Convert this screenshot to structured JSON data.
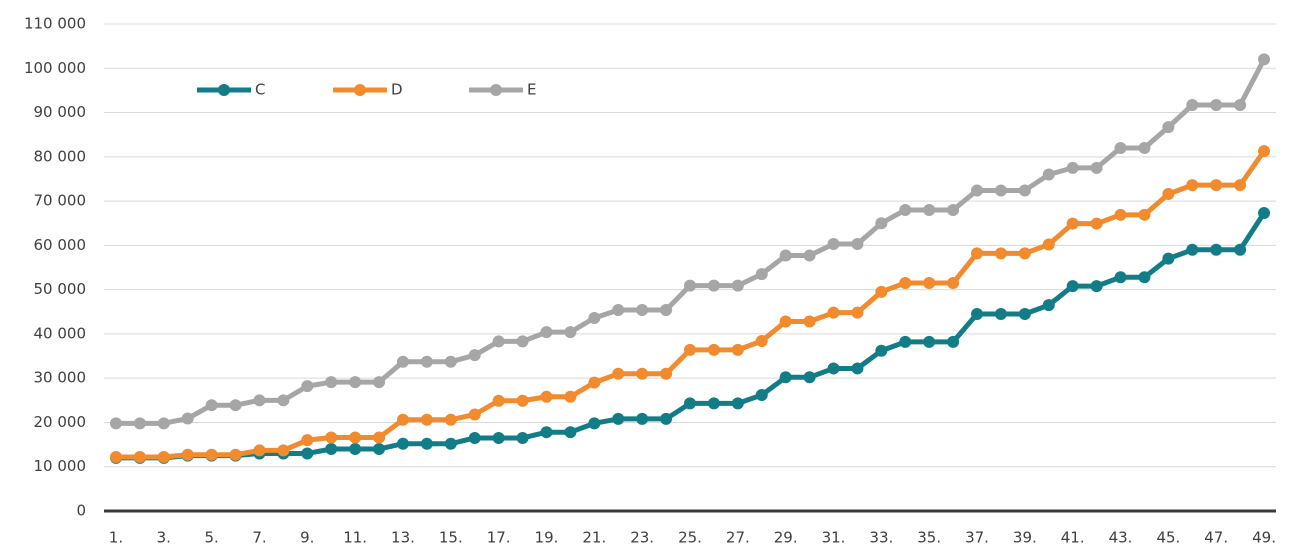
{
  "chart_data": {
    "type": "line",
    "categories": [
      "1.",
      null,
      "3.",
      null,
      "5.",
      null,
      "7.",
      null,
      "9.",
      null,
      "11.",
      null,
      "13.",
      null,
      "15.",
      null,
      "17.",
      null,
      "19.",
      null,
      "21.",
      null,
      "23.",
      null,
      "25.",
      null,
      "27.",
      null,
      "29.",
      null,
      "31.",
      null,
      "33.",
      null,
      "35.",
      null,
      "37.",
      null,
      "39.",
      null,
      "41.",
      null,
      "43.",
      null,
      "45.",
      null,
      "47.",
      null,
      "49."
    ],
    "series": [
      {
        "name": "C",
        "color": "#127d87",
        "values": [
          12000,
          12000,
          12000,
          12500,
          12500,
          12500,
          13000,
          13000,
          13000,
          14000,
          14000,
          14000,
          15200,
          15200,
          15200,
          16500,
          16500,
          16500,
          17800,
          17800,
          19800,
          20800,
          20800,
          20800,
          24300,
          24300,
          24300,
          26200,
          30200,
          30200,
          32200,
          32200,
          36200,
          38200,
          38200,
          38200,
          44500,
          44500,
          44500,
          46500,
          50800,
          50800,
          52800,
          52800,
          57000,
          59000,
          59000,
          59000,
          67300
        ]
      },
      {
        "name": "D",
        "color": "#f28a2e",
        "values": [
          12200,
          12200,
          12200,
          12700,
          12700,
          12700,
          13700,
          13700,
          16000,
          16600,
          16600,
          16600,
          20600,
          20600,
          20600,
          21800,
          24900,
          24900,
          25800,
          25800,
          29000,
          31000,
          31000,
          31000,
          36400,
          36400,
          36400,
          38400,
          42800,
          42800,
          44800,
          44800,
          49500,
          51500,
          51500,
          51500,
          58200,
          58200,
          58200,
          60200,
          64900,
          64900,
          66900,
          66900,
          71600,
          73600,
          73600,
          73600,
          81300
        ]
      },
      {
        "name": "E",
        "color": "#a6a6a6",
        "values": [
          19800,
          19800,
          19800,
          20900,
          23900,
          23900,
          25000,
          25000,
          28200,
          29100,
          29100,
          29100,
          33700,
          33700,
          33700,
          35200,
          38300,
          38300,
          40400,
          40400,
          43600,
          45400,
          45400,
          45400,
          50900,
          50900,
          50900,
          53500,
          57700,
          57700,
          60300,
          60300,
          65000,
          68000,
          68000,
          68000,
          72400,
          72400,
          72400,
          76000,
          77500,
          77500,
          82000,
          82000,
          86700,
          91700,
          91700,
          91700,
          102000
        ]
      }
    ],
    "ylim": [
      0,
      110000
    ],
    "yticks": [
      0,
      {
        "value": 10000,
        "label": "10 000"
      },
      {
        "value": 20000,
        "label": "20 000"
      },
      {
        "value": 30000,
        "label": "30 000"
      },
      {
        "value": 40000,
        "label": "40 000"
      },
      {
        "value": 50000,
        "label": "50 000"
      },
      {
        "value": 60000,
        "label": "60 000"
      },
      {
        "value": 70000,
        "label": "70 000"
      },
      {
        "value": 80000,
        "label": "80 000"
      },
      {
        "value": 90000,
        "label": "90 000"
      },
      {
        "value": 100000,
        "label": "100 000"
      },
      {
        "value": 110000,
        "label": "110 000"
      }
    ],
    "grid": true,
    "legend": "top-left"
  }
}
